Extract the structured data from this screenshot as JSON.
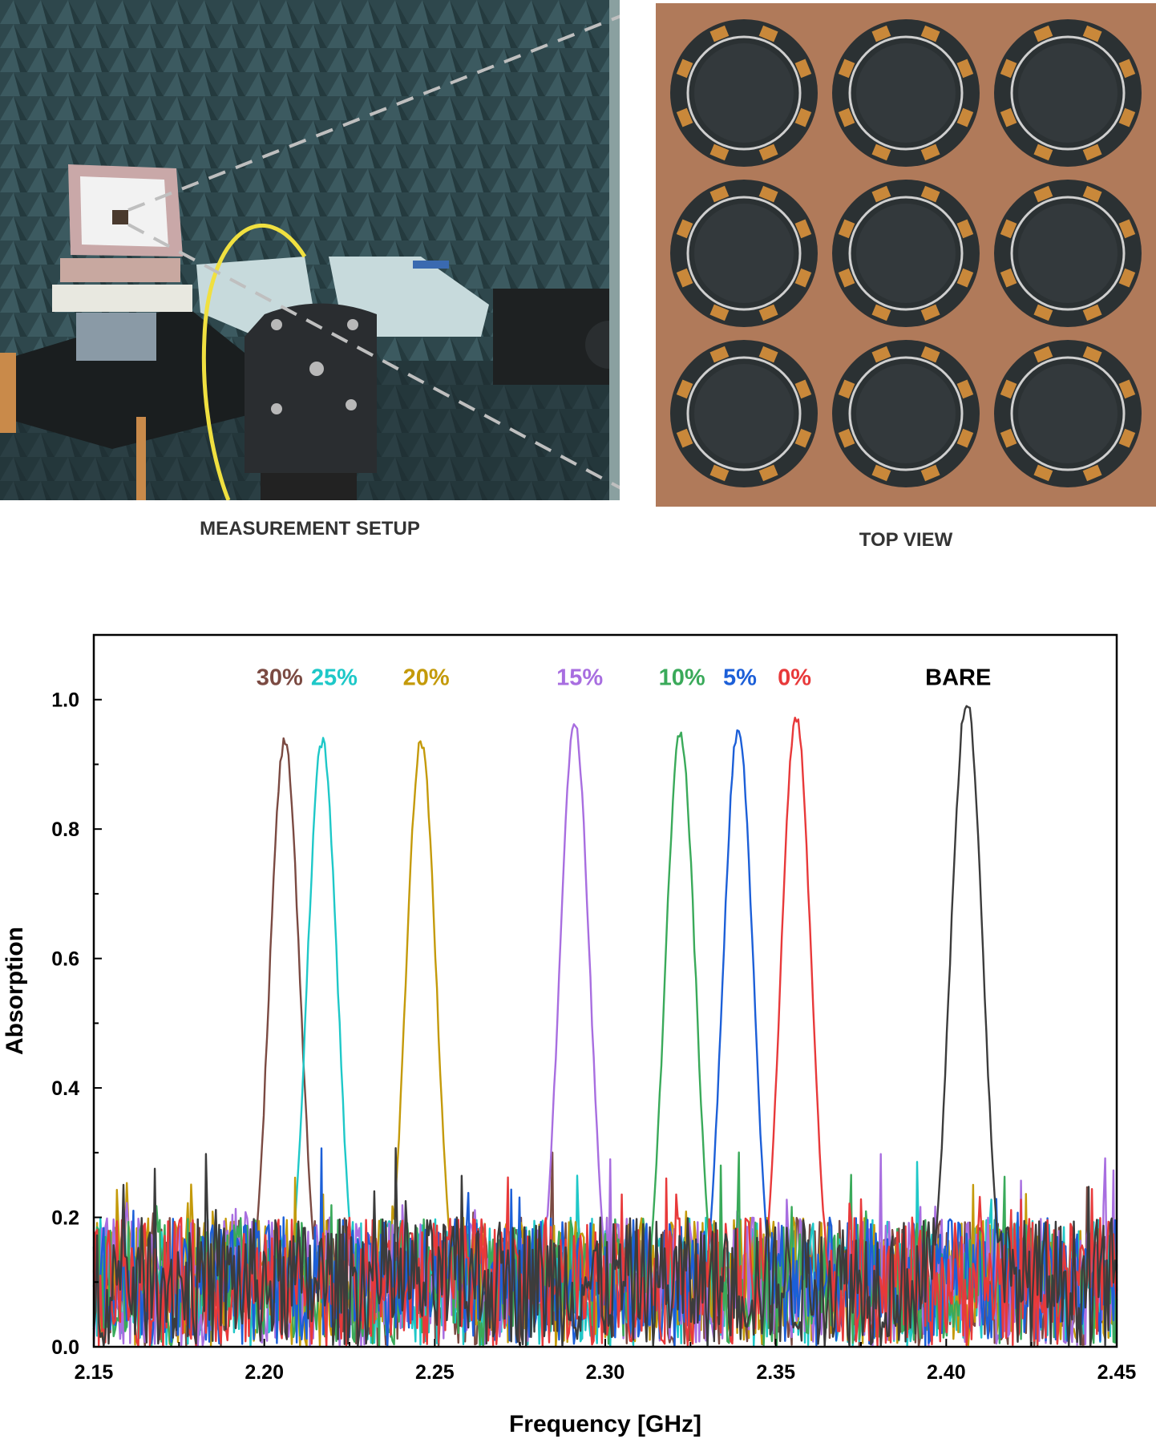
{
  "photos": {
    "setup_caption": "MEASUREMENT SETUP",
    "top_caption": "TOP VIEW"
  },
  "colors": {
    "chamber": "#2e474c",
    "board": "#b07a5a",
    "unit_dark": "#2b3133",
    "coil": "#c9883a"
  },
  "chart_data": {
    "type": "line",
    "xlabel": "Frequency [GHz]",
    "ylabel": "Absorption",
    "xlim": [
      2.15,
      2.45
    ],
    "ylim": [
      0,
      1.1
    ],
    "xticks": [
      "2.15",
      "2.20",
      "2.25",
      "2.30",
      "2.35",
      "2.40",
      "2.45"
    ],
    "yticks": [
      "0.0",
      "0.2",
      "0.4",
      "0.6",
      "0.8",
      "1.0"
    ],
    "grid": false,
    "noise_floor": "0 to ~0.25 random",
    "series": [
      {
        "name": "30%",
        "color": "#7b4a42",
        "peak_x": 2.206,
        "peak_y": 0.935,
        "half_width": 0.0045
      },
      {
        "name": "25%",
        "color": "#1ec8c8",
        "peak_x": 2.217,
        "peak_y": 0.935,
        "half_width": 0.0045
      },
      {
        "name": "20%",
        "color": "#c49a0a",
        "peak_x": 2.246,
        "peak_y": 0.935,
        "half_width": 0.0045
      },
      {
        "name": "15%",
        "color": "#a86ee0",
        "peak_x": 2.291,
        "peak_y": 0.96,
        "half_width": 0.0045
      },
      {
        "name": "10%",
        "color": "#3aaa5a",
        "peak_x": 2.322,
        "peak_y": 0.948,
        "half_width": 0.0045
      },
      {
        "name": "5%",
        "color": "#1c5fd8",
        "peak_x": 2.339,
        "peak_y": 0.955,
        "half_width": 0.0045
      },
      {
        "name": "0%",
        "color": "#e8393a",
        "peak_x": 2.356,
        "peak_y": 0.972,
        "half_width": 0.0045
      },
      {
        "name": "BARE",
        "color": "#3c3c3c",
        "peak_x": 2.406,
        "peak_y": 1.0,
        "half_width": 0.0048
      }
    ]
  }
}
